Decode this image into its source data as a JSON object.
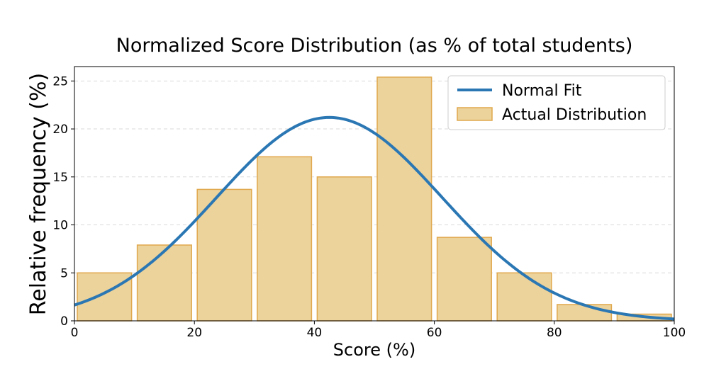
{
  "chart_data": {
    "type": "bar",
    "title": "Normalized Score Distribution (as % of total students)",
    "xlabel": "Score (%)",
    "ylabel": "Relative frequency (%)",
    "xlim": [
      0,
      100
    ],
    "ylim": [
      0,
      26.5
    ],
    "x_ticks": [
      0,
      20,
      40,
      60,
      80,
      100
    ],
    "y_ticks": [
      0,
      5,
      10,
      15,
      20,
      25
    ],
    "grid": "horizontal dashed",
    "legend_position": "top-right",
    "bins": [
      {
        "start": 0,
        "end": 10,
        "value": 5.0
      },
      {
        "start": 10,
        "end": 20,
        "value": 7.9
      },
      {
        "start": 20,
        "end": 30,
        "value": 13.7
      },
      {
        "start": 30,
        "end": 40,
        "value": 17.1
      },
      {
        "start": 40,
        "end": 50,
        "value": 15.0
      },
      {
        "start": 50,
        "end": 60,
        "value": 25.4
      },
      {
        "start": 60,
        "end": 70,
        "value": 8.7
      },
      {
        "start": 70,
        "end": 80,
        "value": 5.0
      },
      {
        "start": 80,
        "end": 90,
        "value": 1.7
      },
      {
        "start": 90,
        "end": 100,
        "value": 0.7
      }
    ],
    "series": [
      {
        "name": "Normal Fit",
        "kind": "line",
        "color": "#2a77b4",
        "mean": 42.5,
        "sd": 18.8,
        "peak": 21.2
      },
      {
        "name": "Actual Distribution",
        "kind": "bar",
        "fill": "#ecd29b",
        "edge": "#e0a84d"
      }
    ]
  }
}
